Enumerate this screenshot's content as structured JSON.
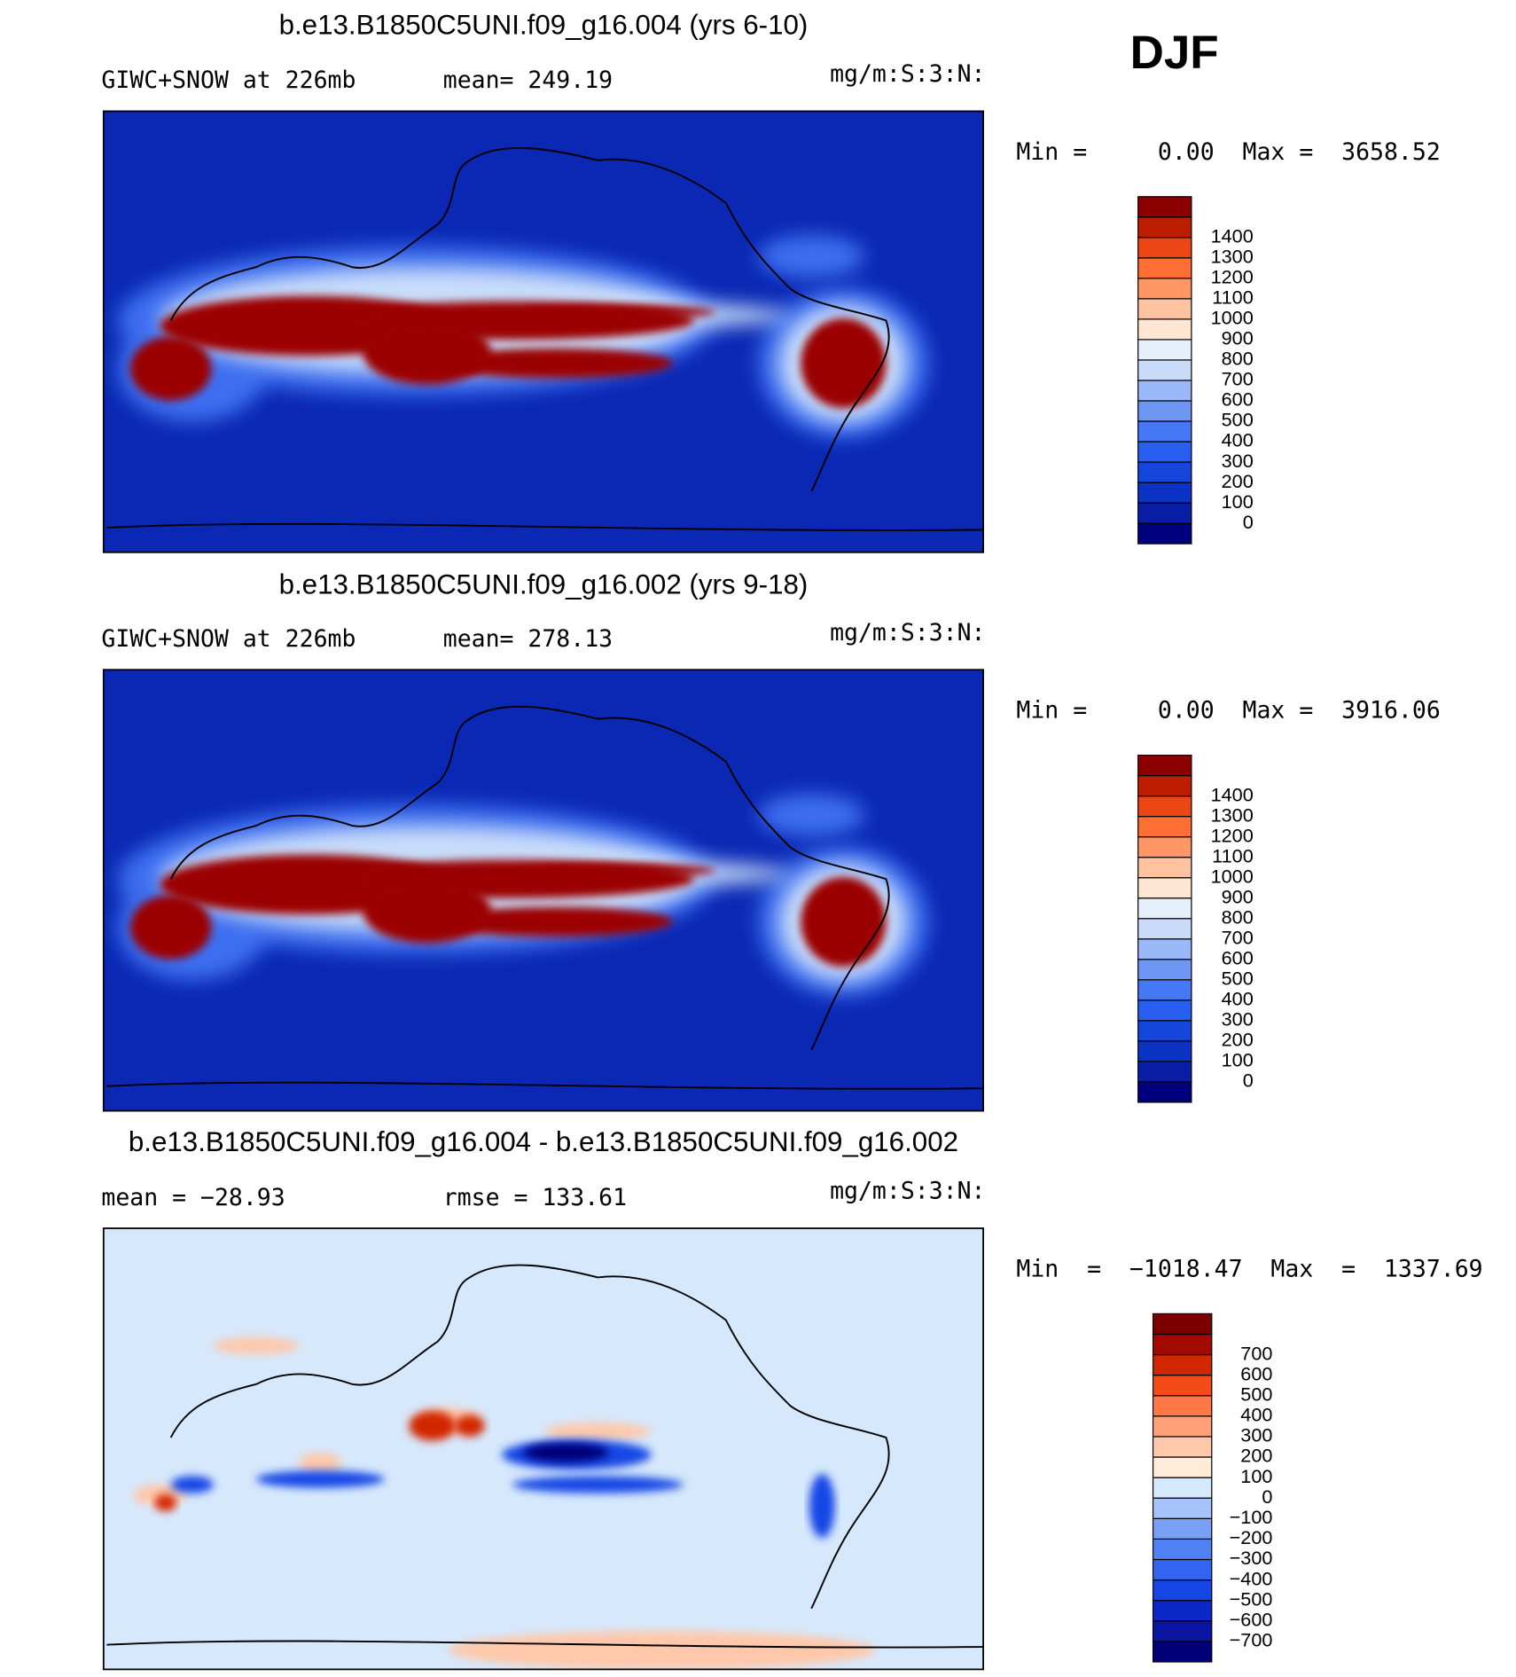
{
  "header": {
    "season": "DJF"
  },
  "panels": [
    {
      "title": "b.e13.B1850C5UNI.f09_g16.004 (yrs 6-10)",
      "left_label": "GIWC+SNOW at 226mb",
      "stat_label": "mean= 249.19",
      "units": "mg/m:S:3:N:",
      "minmax": "Min =     0.00  Max =  3658.52",
      "colorbar": {
        "labels": [
          0,
          100,
          200,
          300,
          400,
          500,
          600,
          700,
          800,
          900,
          1000,
          1100,
          1200,
          1300,
          1400
        ],
        "colors": [
          "#00007f",
          "#0a1ea5",
          "#0a32c3",
          "#1446dc",
          "#285ff0",
          "#4678f5",
          "#6e96f5",
          "#9bb9f8",
          "#c8dcfa",
          "#e6f0fa",
          "#ffe6d2",
          "#ffc3a0",
          "#ff9664",
          "#ff6e32",
          "#eb4614",
          "#be1e00",
          "#8c0000"
        ]
      }
    },
    {
      "title": "b.e13.B1850C5UNI.f09_g16.002 (yrs 9-18)",
      "left_label": "GIWC+SNOW at 226mb",
      "stat_label": "mean= 278.13",
      "units": "mg/m:S:3:N:",
      "minmax": "Min =     0.00  Max =  3916.06",
      "colorbar": {
        "labels": [
          0,
          100,
          200,
          300,
          400,
          500,
          600,
          700,
          800,
          900,
          1000,
          1100,
          1200,
          1300,
          1400
        ],
        "colors": [
          "#00007f",
          "#0a1ea5",
          "#0a32c3",
          "#1446dc",
          "#285ff0",
          "#4678f5",
          "#6e96f5",
          "#9bb9f8",
          "#c8dcfa",
          "#e6f0fa",
          "#ffe6d2",
          "#ffc3a0",
          "#ff9664",
          "#ff6e32",
          "#eb4614",
          "#be1e00",
          "#8c0000"
        ]
      }
    },
    {
      "title": "b.e13.B1850C5UNI.f09_g16.004 - b.e13.B1850C5UNI.f09_g16.002",
      "left_label": "mean  =  −28.93",
      "stat_label": "rmse  =  133.61",
      "units": "mg/m:S:3:N:",
      "minmax": "Min  =  −1018.47  Max  =  1337.69",
      "colorbar": {
        "labels": [
          {
            "value": -700,
            "label": "−700"
          },
          {
            "value": -600,
            "label": "−600"
          },
          {
            "value": -500,
            "label": "−500"
          },
          {
            "value": -400,
            "label": "−400"
          },
          {
            "value": -300,
            "label": "−300"
          },
          {
            "value": -200,
            "label": "−200"
          },
          {
            "value": -100,
            "label": "−100"
          },
          0,
          100,
          200,
          300,
          400,
          500,
          600,
          700
        ],
        "colors": [
          "#000078",
          "#0a14a0",
          "#0a28c8",
          "#1446e6",
          "#3264f0",
          "#5082f5",
          "#78a0f5",
          "#a5c3fa",
          "#d6e8fb",
          "#ffebd7",
          "#ffc8aa",
          "#ffa078",
          "#ff7846",
          "#f54b19",
          "#d22800",
          "#a00a00",
          "#7d0000"
        ]
      }
    }
  ]
}
